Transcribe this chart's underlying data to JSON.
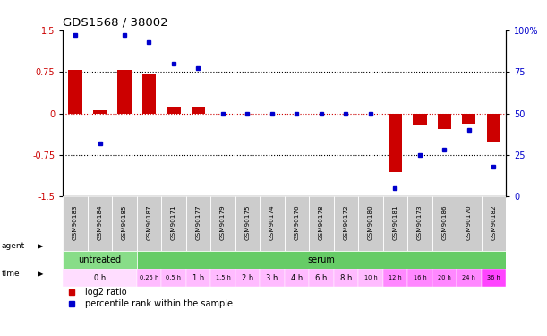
{
  "title": "GDS1568 / 38002",
  "samples": [
    "GSM90183",
    "GSM90184",
    "GSM90185",
    "GSM90187",
    "GSM90171",
    "GSM90177",
    "GSM90179",
    "GSM90175",
    "GSM90174",
    "GSM90176",
    "GSM90178",
    "GSM90172",
    "GSM90180",
    "GSM90181",
    "GSM90173",
    "GSM90186",
    "GSM90170",
    "GSM90182"
  ],
  "log2_ratio": [
    0.78,
    0.05,
    0.78,
    0.7,
    0.12,
    0.13,
    0.0,
    0.0,
    0.0,
    0.0,
    0.0,
    0.0,
    0.0,
    -1.05,
    -0.22,
    -0.28,
    -0.18,
    -0.52
  ],
  "pct_rank": [
    97,
    32,
    97,
    93,
    80,
    77,
    50,
    50,
    50,
    50,
    50,
    50,
    50,
    5,
    25,
    28,
    40,
    18
  ],
  "bar_color": "#cc0000",
  "dot_color": "#0000cc",
  "bg_color": "#ffffff",
  "ylim_left": [
    -1.5,
    1.5
  ],
  "ylim_right": [
    0,
    100
  ],
  "yticks_left": [
    -1.5,
    -0.75,
    0,
    0.75,
    1.5
  ],
  "yticks_right": [
    0,
    25,
    50,
    75,
    100
  ],
  "hline_values": [
    0.75,
    0.0,
    -0.75
  ],
  "agent_labels": [
    {
      "label": "untreated",
      "start": 0,
      "end": 3,
      "color": "#88dd88"
    },
    {
      "label": "serum",
      "start": 3,
      "end": 18,
      "color": "#66cc66"
    }
  ],
  "time_labels": [
    {
      "label": "0 h",
      "start": 0,
      "end": 3,
      "color": "#ffddff"
    },
    {
      "label": "0.25 h",
      "start": 3,
      "end": 4,
      "color": "#ffbbff"
    },
    {
      "label": "0.5 h",
      "start": 4,
      "end": 5,
      "color": "#ffbbff"
    },
    {
      "label": "1 h",
      "start": 5,
      "end": 6,
      "color": "#ffbbff"
    },
    {
      "label": "1.5 h",
      "start": 6,
      "end": 7,
      "color": "#ffbbff"
    },
    {
      "label": "2 h",
      "start": 7,
      "end": 8,
      "color": "#ffbbff"
    },
    {
      "label": "3 h",
      "start": 8,
      "end": 9,
      "color": "#ffbbff"
    },
    {
      "label": "4 h",
      "start": 9,
      "end": 10,
      "color": "#ffbbff"
    },
    {
      "label": "6 h",
      "start": 10,
      "end": 11,
      "color": "#ffbbff"
    },
    {
      "label": "8 h",
      "start": 11,
      "end": 12,
      "color": "#ffbbff"
    },
    {
      "label": "10 h",
      "start": 12,
      "end": 13,
      "color": "#ffbbff"
    },
    {
      "label": "12 h",
      "start": 13,
      "end": 14,
      "color": "#ff88ff"
    },
    {
      "label": "16 h",
      "start": 14,
      "end": 15,
      "color": "#ff88ff"
    },
    {
      "label": "20 h",
      "start": 15,
      "end": 16,
      "color": "#ff88ff"
    },
    {
      "label": "24 h",
      "start": 16,
      "end": 17,
      "color": "#ff88ff"
    },
    {
      "label": "36 h",
      "start": 17,
      "end": 18,
      "color": "#ff44ff"
    }
  ],
  "legend_items": [
    {
      "color": "#cc0000",
      "label": "log2 ratio"
    },
    {
      "color": "#0000cc",
      "label": "percentile rank within the sample"
    }
  ]
}
